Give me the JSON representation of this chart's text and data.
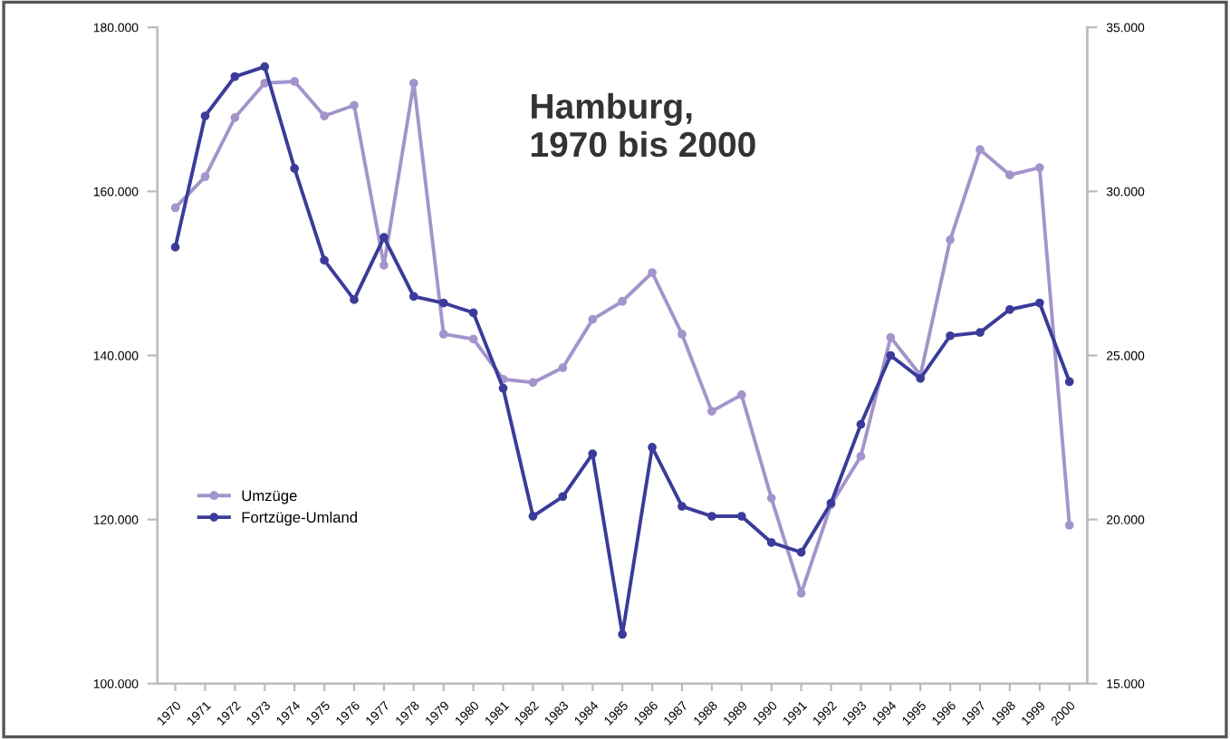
{
  "chart_data": {
    "type": "line",
    "title": "Hamburg,\n1970 bis 2000",
    "categories": [
      "1970",
      "1971",
      "1972",
      "1973",
      "1974",
      "1975",
      "1976",
      "1977",
      "1978",
      "1979",
      "1980",
      "1981",
      "1982",
      "1983",
      "1984",
      "1985",
      "1986",
      "1987",
      "1988",
      "1989",
      "1990",
      "1991",
      "1992",
      "1993",
      "1994",
      "1995",
      "1996",
      "1997",
      "1998",
      "1999",
      "2000"
    ],
    "series": [
      {
        "name": "Umzüge",
        "color": "#a394cc",
        "values": [
          158000,
          161800,
          169000,
          173200,
          173400,
          169200,
          170500,
          151000,
          173200,
          142600,
          142000,
          137100,
          136700,
          138500,
          144400,
          146600,
          150100,
          142600,
          133200,
          135200,
          122600,
          111000,
          121800,
          127700,
          142200,
          137600,
          154100,
          165100,
          162000,
          162900,
          119300
        ]
      },
      {
        "name": "Fortzüge-Umland",
        "color": "#3b3b9a",
        "axis": "y2",
        "values": [
          28300,
          32300,
          33500,
          33800,
          30700,
          27900,
          26700,
          28600,
          26800,
          26600,
          26300,
          24000,
          20100,
          20700,
          22000,
          16500,
          22200,
          20400,
          20100,
          20100,
          19300,
          19000,
          20500,
          22900,
          25000,
          24300,
          25600,
          25700,
          26400,
          26600,
          24200
        ]
      }
    ],
    "ylim": [
      100000,
      180000
    ],
    "yticks": [
      {
        "value": 100000,
        "label": "100.000"
      },
      {
        "value": 120000,
        "label": "120.000"
      },
      {
        "value": 140000,
        "label": "140.000"
      },
      {
        "value": 160000,
        "label": "160.000"
      },
      {
        "value": 180000,
        "label": "180.000"
      }
    ],
    "y2lim": [
      15000,
      35000
    ],
    "y2ticks": [
      {
        "value": 15000,
        "label": "15.000"
      },
      {
        "value": 20000,
        "label": "20.000"
      },
      {
        "value": 25000,
        "label": "25.000"
      },
      {
        "value": 30000,
        "label": "30.000"
      },
      {
        "value": 35000,
        "label": "35.000"
      }
    ],
    "legend": "bottom left",
    "marker": "circle",
    "line_style": "solid",
    "grid": false
  }
}
